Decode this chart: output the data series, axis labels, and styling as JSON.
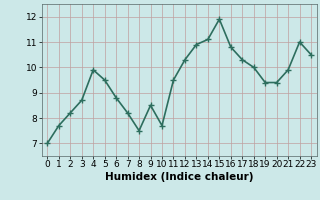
{
  "x": [
    0,
    1,
    2,
    3,
    4,
    5,
    6,
    7,
    8,
    9,
    10,
    11,
    12,
    13,
    14,
    15,
    16,
    17,
    18,
    19,
    20,
    21,
    22,
    23
  ],
  "y": [
    7.0,
    7.7,
    8.2,
    8.7,
    9.9,
    9.5,
    8.8,
    8.2,
    7.5,
    8.5,
    7.7,
    9.5,
    10.3,
    10.9,
    11.1,
    11.9,
    10.8,
    10.3,
    10.0,
    9.4,
    9.4,
    9.9,
    11.0,
    10.5
  ],
  "xlabel": "Humidex (Indice chaleur)",
  "ylim": [
    6.5,
    12.5
  ],
  "xlim": [
    -0.5,
    23.5
  ],
  "yticks": [
    7,
    8,
    9,
    10,
    11,
    12
  ],
  "xticks": [
    0,
    1,
    2,
    3,
    4,
    5,
    6,
    7,
    8,
    9,
    10,
    11,
    12,
    13,
    14,
    15,
    16,
    17,
    18,
    19,
    20,
    21,
    22,
    23
  ],
  "line_color": "#2d6e5e",
  "marker_color": "#2d6e5e",
  "bg_color": "#cce8e8",
  "grid_color": "#c0a0a0",
  "xlabel_fontsize": 7.5,
  "tick_fontsize": 6.5,
  "linewidth": 1.2,
  "markersize": 4
}
